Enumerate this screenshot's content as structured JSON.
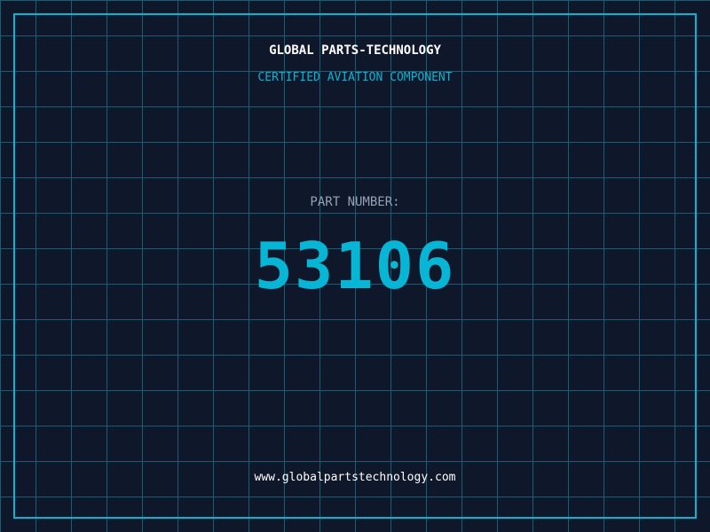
{
  "header": {
    "company": "GLOBAL PARTS-TECHNOLOGY",
    "subtitle": "CERTIFIED AVIATION COMPONENT"
  },
  "part": {
    "label": "PART NUMBER:",
    "number": "53106"
  },
  "footer": {
    "url": "www.globalpartstechnology.com"
  },
  "colors": {
    "background": "#0f172a",
    "grid": "#155e75",
    "accent": "#06b6d4"
  }
}
